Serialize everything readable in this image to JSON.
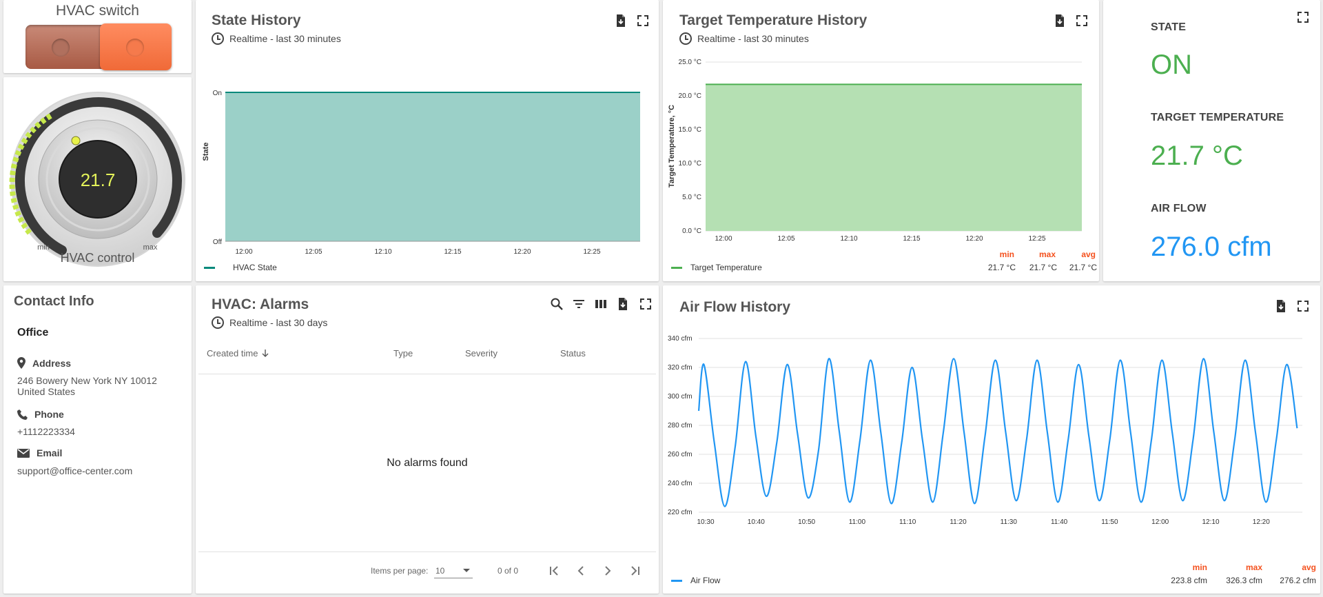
{
  "hvac_switch": {
    "title": "HVAC switch",
    "state_on": true,
    "colors": {
      "track": "#b86a55",
      "knob": "#ff7b4d"
    }
  },
  "hvac_control": {
    "value": "21.7",
    "min_label": "min",
    "max_label": "max",
    "label": "HVAC control",
    "level": 0.35
  },
  "state_history": {
    "title": "State History",
    "timewindow": "Realtime - last 30 minutes",
    "legend": "HVAC State",
    "chart_data": {
      "type": "area",
      "ylabel": "State",
      "y_ticks": [
        "On",
        "Off"
      ],
      "x_ticks": [
        "12:00",
        "12:05",
        "12:10",
        "12:15",
        "12:20",
        "12:25"
      ],
      "series": [
        {
          "name": "HVAC State",
          "color": "#00897b",
          "fill": "#9bd0c8",
          "value": "On"
        }
      ]
    }
  },
  "target_history": {
    "title": "Target Temperature History",
    "timewindow": "Realtime - last 30 minutes",
    "legend": "Target Temperature",
    "stats": {
      "min_label": "min",
      "max_label": "max",
      "avg_label": "avg",
      "min": "21.7 °C",
      "max": "21.7 °C",
      "avg": "21.7 °C"
    },
    "chart_data": {
      "type": "area",
      "ylabel": "Target Temperature, °C",
      "ylim": [
        0,
        25
      ],
      "y_ticks": [
        "25.0 °C",
        "20.0 °C",
        "15.0 °C",
        "10.0 °C",
        "5.0 °C",
        "0.0 °C"
      ],
      "x_ticks": [
        "12:00",
        "12:05",
        "12:10",
        "12:15",
        "12:20",
        "12:25"
      ],
      "series": [
        {
          "name": "Target Temperature",
          "color": "#4caf50",
          "fill": "#b5e0b3",
          "value": 21.7
        }
      ]
    }
  },
  "state_card": {
    "state_label": "STATE",
    "state_value": "ON",
    "target_label": "TARGET TEMPERATURE",
    "target_value": "21.7 °C",
    "airflow_label": "AIR FLOW",
    "airflow_value": "276.0 cfm",
    "colors": {
      "green": "#4caf50",
      "blue": "#2196f3"
    }
  },
  "contact": {
    "title": "Contact Info",
    "office": "Office",
    "address_label": "Address",
    "address_line1": "246 Bowery New York NY 10012",
    "address_line2": "United States",
    "phone_label": "Phone",
    "phone": "+1112223334",
    "email_label": "Email",
    "email": "support@office-center.com"
  },
  "alarms": {
    "title": "HVAC: Alarms",
    "timewindow": "Realtime - last 30 days",
    "columns": [
      "Created time",
      "Type",
      "Severity",
      "Status"
    ],
    "empty": "No alarms found",
    "items_per_page_label": "Items per page:",
    "items_per_page": "10",
    "range": "0 of 0"
  },
  "airflow_history": {
    "title": "Air Flow History",
    "legend": "Air Flow",
    "stats": {
      "min_label": "min",
      "max_label": "max",
      "avg_label": "avg",
      "min": "223.8 cfm",
      "max": "326.3 cfm",
      "avg": "276.2 cfm"
    },
    "chart_data": {
      "type": "line",
      "ylim": [
        220,
        340
      ],
      "y_ticks": [
        "340 cfm",
        "320 cfm",
        "300 cfm",
        "280 cfm",
        "260 cfm",
        "240 cfm",
        "220 cfm"
      ],
      "x_ticks": [
        "10:30",
        "10:40",
        "10:50",
        "11:00",
        "11:10",
        "11:20",
        "11:30",
        "11:40",
        "11:50",
        "12:00",
        "12:10",
        "12:20"
      ],
      "series": [
        {
          "name": "Air Flow",
          "color": "#2196f3",
          "x_minutes": [
            0,
            2.5,
            7.5,
            12.5,
            17.5,
            22.5,
            27.5,
            32.5,
            37.5,
            42.5,
            47.5,
            52.5,
            57.5,
            62.5,
            67.5,
            72.5,
            77.5,
            82.5,
            87.5,
            92.5,
            97.5,
            102.5,
            107.5,
            112.5,
            117.5,
            122.5,
            127.5,
            132.5,
            137.5,
            142.5,
            147.5,
            152.5,
            157.5,
            162.5,
            167.5,
            172.5,
            177.5,
            182.5,
            187.5,
            192.5,
            197.5,
            202.5,
            207.5,
            212.5,
            217.5,
            222.5,
            227.5,
            232.5,
            237.5,
            242.5,
            247.5,
            252.5,
            257.5,
            262.5,
            267.5,
            272.5,
            277.5,
            282.5,
            287.5
          ],
          "values": [
            290,
            322,
            268,
            224,
            265,
            324,
            272,
            231,
            268,
            322,
            274,
            230,
            262,
            326,
            276,
            227,
            270,
            325,
            275,
            226,
            268,
            320,
            270,
            227,
            275,
            326,
            275,
            226,
            272,
            325,
            275,
            228,
            270,
            325,
            275,
            227,
            270,
            322,
            272,
            228,
            270,
            325,
            275,
            227,
            270,
            325,
            275,
            228,
            270,
            326,
            275,
            228,
            270,
            325,
            275,
            227,
            270,
            322,
            278
          ]
        }
      ]
    }
  }
}
